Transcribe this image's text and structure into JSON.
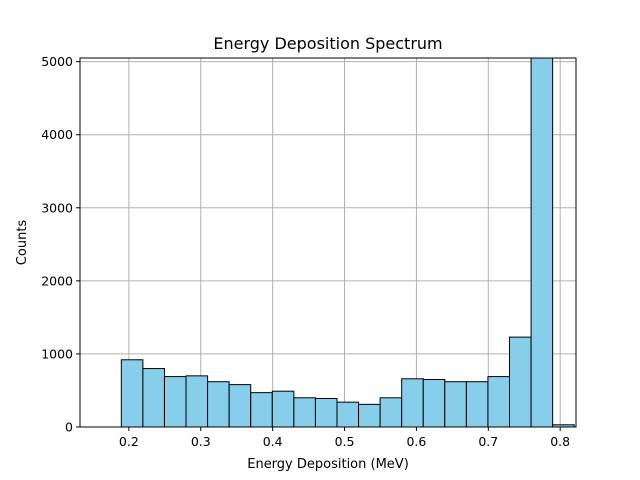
{
  "chart_data": {
    "type": "bar",
    "title": "Energy Deposition Spectrum",
    "xlabel": "Energy Deposition (MeV)",
    "ylabel": "Counts",
    "xlim": [
      0.132,
      0.822
    ],
    "ylim": [
      0,
      5050
    ],
    "xticks": [
      0.2,
      0.3,
      0.4,
      0.5,
      0.6,
      0.7,
      0.8
    ],
    "xtick_labels": [
      "0.2",
      "0.3",
      "0.4",
      "0.5",
      "0.6",
      "0.7",
      "0.8"
    ],
    "yticks": [
      0,
      1000,
      2000,
      3000,
      4000,
      5000
    ],
    "ytick_labels": [
      "0",
      "1000",
      "2000",
      "3000",
      "4000",
      "5000"
    ],
    "grid": true,
    "bar_color": "#87ceeb",
    "edge_color": "#000000",
    "grid_color": "#b0b0b0",
    "bin_edges": [
      0.1895,
      0.2195,
      0.2495,
      0.2795,
      0.3095,
      0.3395,
      0.3695,
      0.3995,
      0.4295,
      0.4595,
      0.4895,
      0.5195,
      0.5495,
      0.5795,
      0.6095,
      0.6395,
      0.6695,
      0.6995,
      0.7295,
      0.7595,
      0.7895,
      0.8195
    ],
    "counts": [
      920,
      800,
      690,
      700,
      620,
      580,
      470,
      490,
      400,
      390,
      340,
      310,
      400,
      660,
      650,
      620,
      620,
      690,
      1230,
      5050,
      30
    ]
  }
}
